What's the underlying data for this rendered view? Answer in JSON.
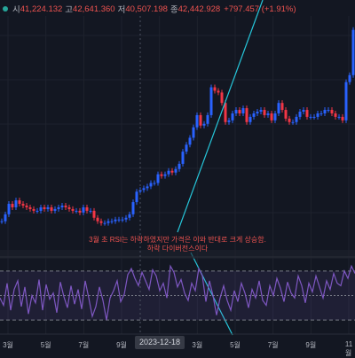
{
  "ohlc": {
    "open_label": "시",
    "open": "41,224.132",
    "high_label": "고",
    "high": "42,641.360",
    "low_label": "저",
    "low": "40,507.198",
    "close_label": "종",
    "close": "42,442.928",
    "change": "+797.457 (+1.91%)"
  },
  "annotation": {
    "line1": "3월 초 RSI는 하락하였지만 가격은 이와 반대로 크게 상승함.",
    "line2": "하락 다이버전스이다"
  },
  "crosshair": {
    "date": "2023-12-18"
  },
  "colors": {
    "background": "#131722",
    "candle_up": "#2962ff",
    "candle_down": "#f23645",
    "trendline": "#26c6da",
    "rsi": "#7e57c2",
    "rsi_band": "#7e57c2"
  },
  "chart_data": {
    "type": "line",
    "price": {
      "x": [
        0,
        4,
        8,
        12,
        16,
        20,
        24,
        28,
        32,
        36,
        40,
        44,
        48,
        52,
        56,
        60,
        64,
        68,
        72,
        76,
        80,
        84,
        88,
        92,
        96,
        100,
        104,
        108,
        112,
        116,
        120,
        124,
        128,
        132,
        136,
        140,
        144,
        148,
        152,
        156,
        160,
        164,
        168,
        172,
        176,
        180,
        184,
        188,
        192,
        196,
        200,
        204,
        208,
        212,
        216,
        220,
        224,
        228,
        232,
        236,
        240,
        244,
        248,
        252,
        256,
        260,
        264,
        268,
        272,
        276,
        280,
        284,
        288,
        292,
        296,
        300,
        304,
        308,
        312,
        316,
        320,
        324,
        328,
        332,
        336,
        340,
        344,
        348,
        352,
        356,
        360,
        364,
        368,
        372,
        376,
        380,
        384,
        388,
        392,
        396,
        400
      ],
      "values": [
        18,
        22,
        28,
        26,
        30,
        28,
        27,
        26,
        25,
        24,
        24,
        26,
        25,
        26,
        24,
        25,
        26,
        27,
        26,
        25,
        24,
        24,
        23,
        26,
        24,
        24,
        20,
        18,
        17,
        17,
        18,
        18,
        19,
        19,
        19,
        20,
        22,
        29,
        35,
        36,
        37,
        38,
        40,
        40,
        45,
        44,
        45,
        47,
        46,
        48,
        51,
        58,
        62,
        66,
        72,
        79,
        73,
        74,
        79,
        95,
        93,
        92,
        86,
        75,
        76,
        80,
        82,
        80,
        83,
        75,
        78,
        80,
        81,
        82,
        79,
        80,
        76,
        80,
        86,
        82,
        77,
        75,
        75,
        78,
        81,
        82,
        78,
        78,
        78,
        80,
        80,
        82,
        82,
        80,
        78,
        78,
        76,
        98,
        102,
        128,
        120
      ]
    },
    "rsi": {
      "x": [
        0,
        4,
        8,
        12,
        16,
        20,
        24,
        28,
        32,
        36,
        40,
        44,
        48,
        52,
        56,
        60,
        64,
        68,
        72,
        76,
        80,
        84,
        88,
        92,
        96,
        100,
        104,
        108,
        112,
        116,
        120,
        124,
        128,
        132,
        136,
        140,
        144,
        148,
        152,
        156,
        160,
        164,
        168,
        172,
        176,
        180,
        184,
        188,
        192,
        196,
        200,
        204,
        208,
        212,
        216,
        220,
        224,
        228,
        232,
        236,
        240,
        244,
        248,
        252,
        256,
        260,
        264,
        268,
        272,
        276,
        280,
        284,
        288,
        292,
        296,
        300,
        304,
        308,
        312,
        316,
        320,
        324,
        328,
        332,
        336,
        340,
        344,
        348,
        352,
        356,
        360,
        364,
        368,
        372,
        376,
        380,
        384,
        388,
        392,
        396,
        400
      ],
      "values": [
        48,
        42,
        60,
        38,
        55,
        62,
        41,
        57,
        35,
        50,
        44,
        63,
        38,
        59,
        47,
        52,
        36,
        61,
        49,
        40,
        58,
        43,
        55,
        39,
        62,
        48,
        33,
        41,
        57,
        46,
        30,
        48,
        54,
        62,
        45,
        51,
        67,
        72,
        64,
        58,
        69,
        62,
        55,
        71,
        66,
        54,
        60,
        48,
        74,
        69,
        57,
        63,
        52,
        46,
        60,
        54,
        72,
        66,
        45,
        62,
        50,
        34,
        48,
        58,
        46,
        38,
        54,
        45,
        60,
        52,
        40,
        55,
        48,
        62,
        46,
        42,
        58,
        50,
        64,
        56,
        45,
        61,
        52,
        48,
        66,
        58,
        44,
        60,
        53,
        66,
        57,
        48,
        62,
        55,
        68,
        60,
        58,
        70,
        64,
        74,
        68
      ]
    },
    "rsi_bands": [
      70,
      50,
      30
    ],
    "x_tick_labels": [
      "3월",
      "5월",
      "7월",
      "9월",
      "1",
      "3월",
      "5월",
      "7월",
      "9월",
      "11월"
    ],
    "ylim": [
      0,
      135
    ],
    "rsi_ylim": [
      20,
      80
    ],
    "grid": true,
    "legend": "top-left"
  }
}
